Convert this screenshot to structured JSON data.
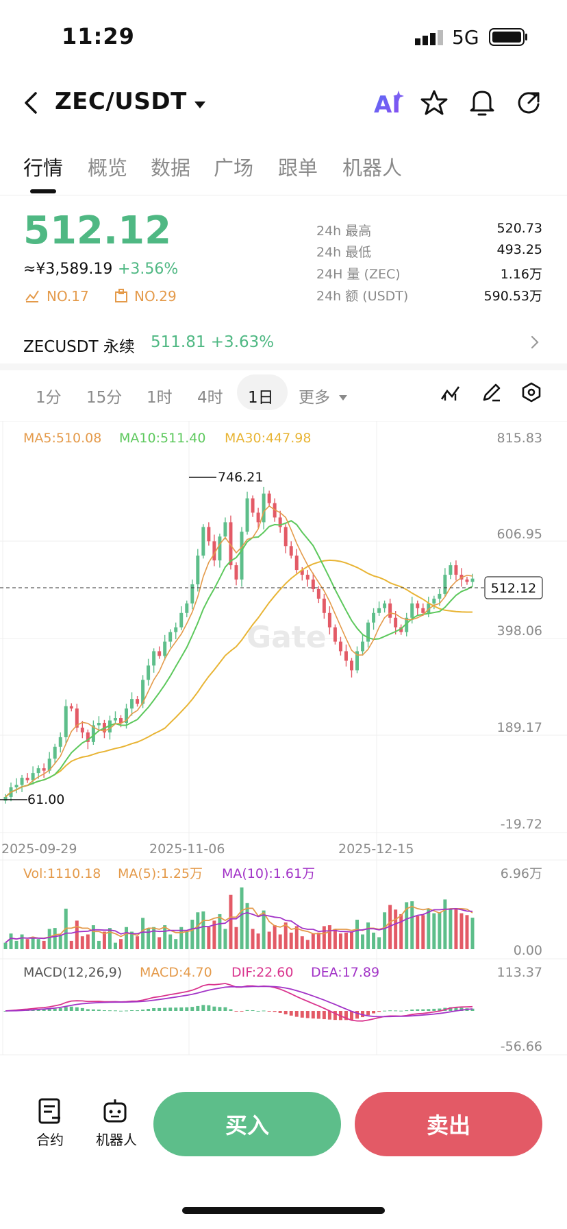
{
  "status_bar": {
    "time": "11:29",
    "network": "5G"
  },
  "header": {
    "symbol": "ZEC/USDT",
    "ai_label": "AI"
  },
  "tabs": [
    {
      "label": "行情",
      "active": true
    },
    {
      "label": "概览",
      "active": false
    },
    {
      "label": "数据",
      "active": false
    },
    {
      "label": "广场",
      "active": false
    },
    {
      "label": "跟单",
      "active": false
    },
    {
      "label": "机器人",
      "active": false
    }
  ],
  "ticker": {
    "price": "512.12",
    "cny": "≈¥3,589.19",
    "change": "+3.56%",
    "rank1": "NO.17",
    "rank2": "NO.29",
    "stats": [
      {
        "label": "24h  最高",
        "value": "520.73"
      },
      {
        "label": "24h  最低",
        "value": "493.25"
      },
      {
        "label": "24H  量 (ZEC)",
        "value": "1.16万"
      },
      {
        "label": "24h  额 (USDT)",
        "value": "590.53万"
      }
    ]
  },
  "perpetual": {
    "name": "ZECUSDT 永续",
    "value": "511.81  +3.63%"
  },
  "timeframes": [
    {
      "label": "1分",
      "active": false
    },
    {
      "label": "15分",
      "active": false
    },
    {
      "label": "1时",
      "active": false
    },
    {
      "label": "4时",
      "active": false
    },
    {
      "label": "1日",
      "active": true
    }
  ],
  "more_label": "更多",
  "chart_data": {
    "type": "candlestick",
    "ma_legend": {
      "ma5": "MA5:510.08",
      "ma10": "MA10:511.40",
      "ma30": "MA30:447.98"
    },
    "y_ticks": [
      "815.83",
      "606.95",
      "398.06",
      "189.17",
      "-19.72"
    ],
    "ylim": [
      -19.72,
      815.83
    ],
    "x_ticks": [
      "2025-09-29",
      "2025-11-06",
      "2025-12-15"
    ],
    "high_marker": "746.21",
    "low_marker": "61.00",
    "last_price_tag": "512.12",
    "watermark": "Gate",
    "closes": [
      55,
      75,
      80,
      95,
      90,
      105,
      115,
      110,
      135,
      160,
      180,
      245,
      240,
      200,
      190,
      170,
      205,
      210,
      190,
      215,
      220,
      210,
      240,
      260,
      250,
      300,
      330,
      360,
      350,
      380,
      400,
      410,
      440,
      460,
      500,
      560,
      620,
      590,
      550,
      600,
      630,
      540,
      510,
      610,
      680,
      650,
      630,
      690,
      670,
      640,
      620,
      580,
      560,
      530,
      520,
      510,
      490,
      470,
      440,
      410,
      380,
      360,
      340,
      320,
      360,
      380,
      420,
      440,
      450,
      460,
      430,
      410,
      400,
      430,
      460,
      450,
      440,
      460,
      470,
      480,
      520,
      540,
      520,
      510,
      505,
      512
    ],
    "volume": {
      "legend": {
        "vol": "Vol:1110.18",
        "ma5": "MA(5):1.25万",
        "ma10": "MA(10):1.61万"
      },
      "ticks": [
        "6.96万",
        "0.00"
      ]
    },
    "macd": {
      "legend": {
        "title": "MACD(12,26,9)",
        "macd": "MACD:4.70",
        "dif": "DIF:22.60",
        "dea": "DEA:17.89"
      },
      "ticks": [
        "113.37",
        "-56.66"
      ]
    }
  },
  "bottom": {
    "contract_label": "合约",
    "robot_label": "机器人",
    "buy_label": "买入",
    "sell_label": "卖出"
  }
}
